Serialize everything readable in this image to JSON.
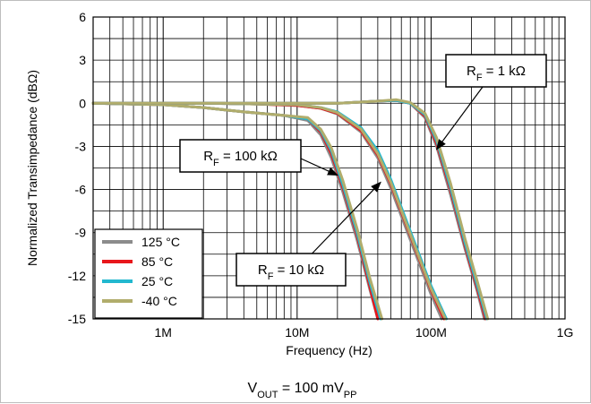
{
  "chart_data": {
    "type": "line",
    "title": "",
    "xlabel": "Frequency (Hz)",
    "ylabel": "Normalized Transimpedance (dBΩ)",
    "x_scale": "log",
    "xlim": [
      300000,
      1000000000
    ],
    "ylim": [
      -15,
      6
    ],
    "x_ticks": [
      {
        "value": 1000000,
        "label": "1M"
      },
      {
        "value": 10000000,
        "label": "10M"
      },
      {
        "value": 100000000,
        "label": "100M"
      },
      {
        "value": 1000000000,
        "label": "1G"
      }
    ],
    "y_ticks": [
      {
        "value": 6,
        "label": "6"
      },
      {
        "value": 3,
        "label": "3"
      },
      {
        "value": 0,
        "label": "0"
      },
      {
        "value": -3,
        "label": "-3"
      },
      {
        "value": -6,
        "label": "-6"
      },
      {
        "value": -9,
        "label": "-9"
      },
      {
        "value": -12,
        "label": "-12"
      },
      {
        "value": -15,
        "label": "-15"
      }
    ],
    "grid": true,
    "legend_position": "bottom-left",
    "legend": [
      {
        "name": "125 °C",
        "color": "#8c8c8c"
      },
      {
        "name": "85 °C",
        "color": "#e8161b"
      },
      {
        "name": "25 °C",
        "color": "#22b8cf"
      },
      {
        "name": "-40 °C",
        "color": "#b1ad6c"
      }
    ],
    "groups": [
      {
        "label_main": "R",
        "label_sub": "F",
        "label_rest": " = 100 kΩ",
        "series": [
          {
            "temp": "125 °C",
            "color": "#8c8c8c",
            "points": [
              [
                300000,
                0
              ],
              [
                1000000,
                -0.1
              ],
              [
                2000000,
                -0.3
              ],
              [
                4000000,
                -0.6
              ],
              [
                8000000,
                -0.85
              ],
              [
                12000000,
                -1.2
              ],
              [
                15000000,
                -2.2
              ],
              [
                18000000,
                -3.8
              ],
              [
                22000000,
                -6.2
              ],
              [
                28000000,
                -9.5
              ],
              [
                35000000,
                -13
              ],
              [
                40000000,
                -15
              ]
            ]
          },
          {
            "temp": "85 °C",
            "color": "#e8161b",
            "points": [
              [
                300000,
                0
              ],
              [
                1000000,
                -0.1
              ],
              [
                2000000,
                -0.3
              ],
              [
                4000000,
                -0.6
              ],
              [
                8000000,
                -0.85
              ],
              [
                12000000,
                -1.1
              ],
              [
                15000000,
                -2.0
              ],
              [
                18000000,
                -3.5
              ],
              [
                22000000,
                -5.9
              ],
              [
                28000000,
                -9.2
              ],
              [
                35000000,
                -12.8
              ],
              [
                40000000,
                -15
              ]
            ]
          },
          {
            "temp": "25 °C",
            "color": "#22b8cf",
            "points": [
              [
                300000,
                0
              ],
              [
                1000000,
                -0.1
              ],
              [
                2000000,
                -0.3
              ],
              [
                4000000,
                -0.6
              ],
              [
                8000000,
                -0.85
              ],
              [
                12000000,
                -1.1
              ],
              [
                15000000,
                -1.9
              ],
              [
                18000000,
                -3.3
              ],
              [
                22000000,
                -5.7
              ],
              [
                28000000,
                -9.0
              ],
              [
                35000000,
                -12.5
              ],
              [
                42000000,
                -15
              ]
            ]
          },
          {
            "temp": "-40 °C",
            "color": "#b1ad6c",
            "points": [
              [
                300000,
                0
              ],
              [
                1000000,
                -0.1
              ],
              [
                2000000,
                -0.3
              ],
              [
                4000000,
                -0.6
              ],
              [
                8000000,
                -0.85
              ],
              [
                12000000,
                -1.0
              ],
              [
                15000000,
                -1.8
              ],
              [
                18000000,
                -3.1
              ],
              [
                22000000,
                -5.4
              ],
              [
                28000000,
                -8.7
              ],
              [
                35000000,
                -12.2
              ],
              [
                43000000,
                -15
              ]
            ]
          }
        ]
      },
      {
        "label_main": "R",
        "label_sub": "F",
        "label_rest": " = 10 kΩ",
        "series": [
          {
            "temp": "125 °C",
            "color": "#8c8c8c",
            "points": [
              [
                300000,
                0
              ],
              [
                2000000,
                0
              ],
              [
                5000000,
                -0.05
              ],
              [
                10000000,
                -0.15
              ],
              [
                15000000,
                -0.35
              ],
              [
                20000000,
                -0.75
              ],
              [
                30000000,
                -2.0
              ],
              [
                40000000,
                -3.8
              ],
              [
                50000000,
                -5.9
              ],
              [
                70000000,
                -9.5
              ],
              [
                100000000,
                -13.3
              ],
              [
                120000000,
                -15
              ]
            ]
          },
          {
            "temp": "85 °C",
            "color": "#e8161b",
            "points": [
              [
                300000,
                0
              ],
              [
                2000000,
                0
              ],
              [
                5000000,
                -0.05
              ],
              [
                10000000,
                -0.15
              ],
              [
                15000000,
                -0.35
              ],
              [
                20000000,
                -0.7
              ],
              [
                30000000,
                -1.9
              ],
              [
                40000000,
                -3.6
              ],
              [
                50000000,
                -5.6
              ],
              [
                70000000,
                -9.2
              ],
              [
                100000000,
                -13.0
              ],
              [
                125000000,
                -15
              ]
            ]
          },
          {
            "temp": "25 °C",
            "color": "#22b8cf",
            "points": [
              [
                300000,
                0
              ],
              [
                2000000,
                0
              ],
              [
                5000000,
                -0.05
              ],
              [
                10000000,
                -0.1
              ],
              [
                15000000,
                -0.3
              ],
              [
                20000000,
                -0.6
              ],
              [
                30000000,
                -1.7
              ],
              [
                40000000,
                -3.3
              ],
              [
                50000000,
                -5.3
              ],
              [
                70000000,
                -8.9
              ],
              [
                100000000,
                -12.7
              ],
              [
                130000000,
                -15
              ]
            ]
          },
          {
            "temp": "-40 °C",
            "color": "#b1ad6c",
            "points": [
              [
                300000,
                0
              ],
              [
                2000000,
                0
              ],
              [
                5000000,
                -0.05
              ],
              [
                10000000,
                -0.1
              ],
              [
                15000000,
                -0.3
              ],
              [
                20000000,
                -0.65
              ],
              [
                30000000,
                -1.8
              ],
              [
                40000000,
                -3.5
              ],
              [
                50000000,
                -5.5
              ],
              [
                70000000,
                -9.1
              ],
              [
                100000000,
                -12.9
              ],
              [
                128000000,
                -15
              ]
            ]
          }
        ]
      },
      {
        "label_main": "R",
        "label_sub": "F",
        "label_rest": " = 1 kΩ",
        "series": [
          {
            "temp": "125 °C",
            "color": "#8c8c8c",
            "points": [
              [
                300000,
                0
              ],
              [
                5000000,
                0
              ],
              [
                20000000,
                0
              ],
              [
                40000000,
                0.15
              ],
              [
                55000000,
                0.2
              ],
              [
                70000000,
                0
              ],
              [
                90000000,
                -1.0
              ],
              [
                110000000,
                -3.0
              ],
              [
                140000000,
                -6.4
              ],
              [
                180000000,
                -10.2
              ],
              [
                220000000,
                -13.0
              ],
              [
                250000000,
                -15
              ]
            ]
          },
          {
            "temp": "85 °C",
            "color": "#e8161b",
            "points": [
              [
                300000,
                0
              ],
              [
                5000000,
                0
              ],
              [
                20000000,
                0
              ],
              [
                40000000,
                0.15
              ],
              [
                55000000,
                0.2
              ],
              [
                70000000,
                0
              ],
              [
                90000000,
                -0.9
              ],
              [
                110000000,
                -2.8
              ],
              [
                140000000,
                -6.1
              ],
              [
                180000000,
                -10.0
              ],
              [
                220000000,
                -12.8
              ],
              [
                255000000,
                -15
              ]
            ]
          },
          {
            "temp": "25 °C",
            "color": "#22b8cf",
            "points": [
              [
                300000,
                0
              ],
              [
                5000000,
                0
              ],
              [
                20000000,
                0
              ],
              [
                40000000,
                0.15
              ],
              [
                55000000,
                0.2
              ],
              [
                70000000,
                0
              ],
              [
                90000000,
                -0.8
              ],
              [
                110000000,
                -2.6
              ],
              [
                140000000,
                -5.9
              ],
              [
                180000000,
                -9.8
              ],
              [
                220000000,
                -12.6
              ],
              [
                260000000,
                -15
              ]
            ]
          },
          {
            "temp": "-40 °C",
            "color": "#b1ad6c",
            "points": [
              [
                300000,
                0
              ],
              [
                5000000,
                0
              ],
              [
                20000000,
                0
              ],
              [
                40000000,
                0.15
              ],
              [
                55000000,
                0.25
              ],
              [
                70000000,
                0.05
              ],
              [
                90000000,
                -0.7
              ],
              [
                110000000,
                -2.4
              ],
              [
                140000000,
                -5.6
              ],
              [
                180000000,
                -9.5
              ],
              [
                220000000,
                -12.3
              ],
              [
                265000000,
                -15
              ]
            ]
          }
        ]
      }
    ],
    "annotations": [
      {
        "main": "R",
        "sub": "F",
        "rest": " = 1 kΩ",
        "target": [
          110000000,
          -3.2
        ]
      },
      {
        "main": "R",
        "sub": "F",
        "rest": " = 100 kΩ",
        "target": [
          20000000,
          -5.0
        ]
      },
      {
        "main": "R",
        "sub": "F",
        "rest": " = 10 kΩ",
        "target": [
          42000000,
          -5.5
        ]
      }
    ],
    "condition": {
      "main": "V",
      "sub1": "OUT",
      "mid": " = 100 mV",
      "sub2": "PP"
    }
  }
}
